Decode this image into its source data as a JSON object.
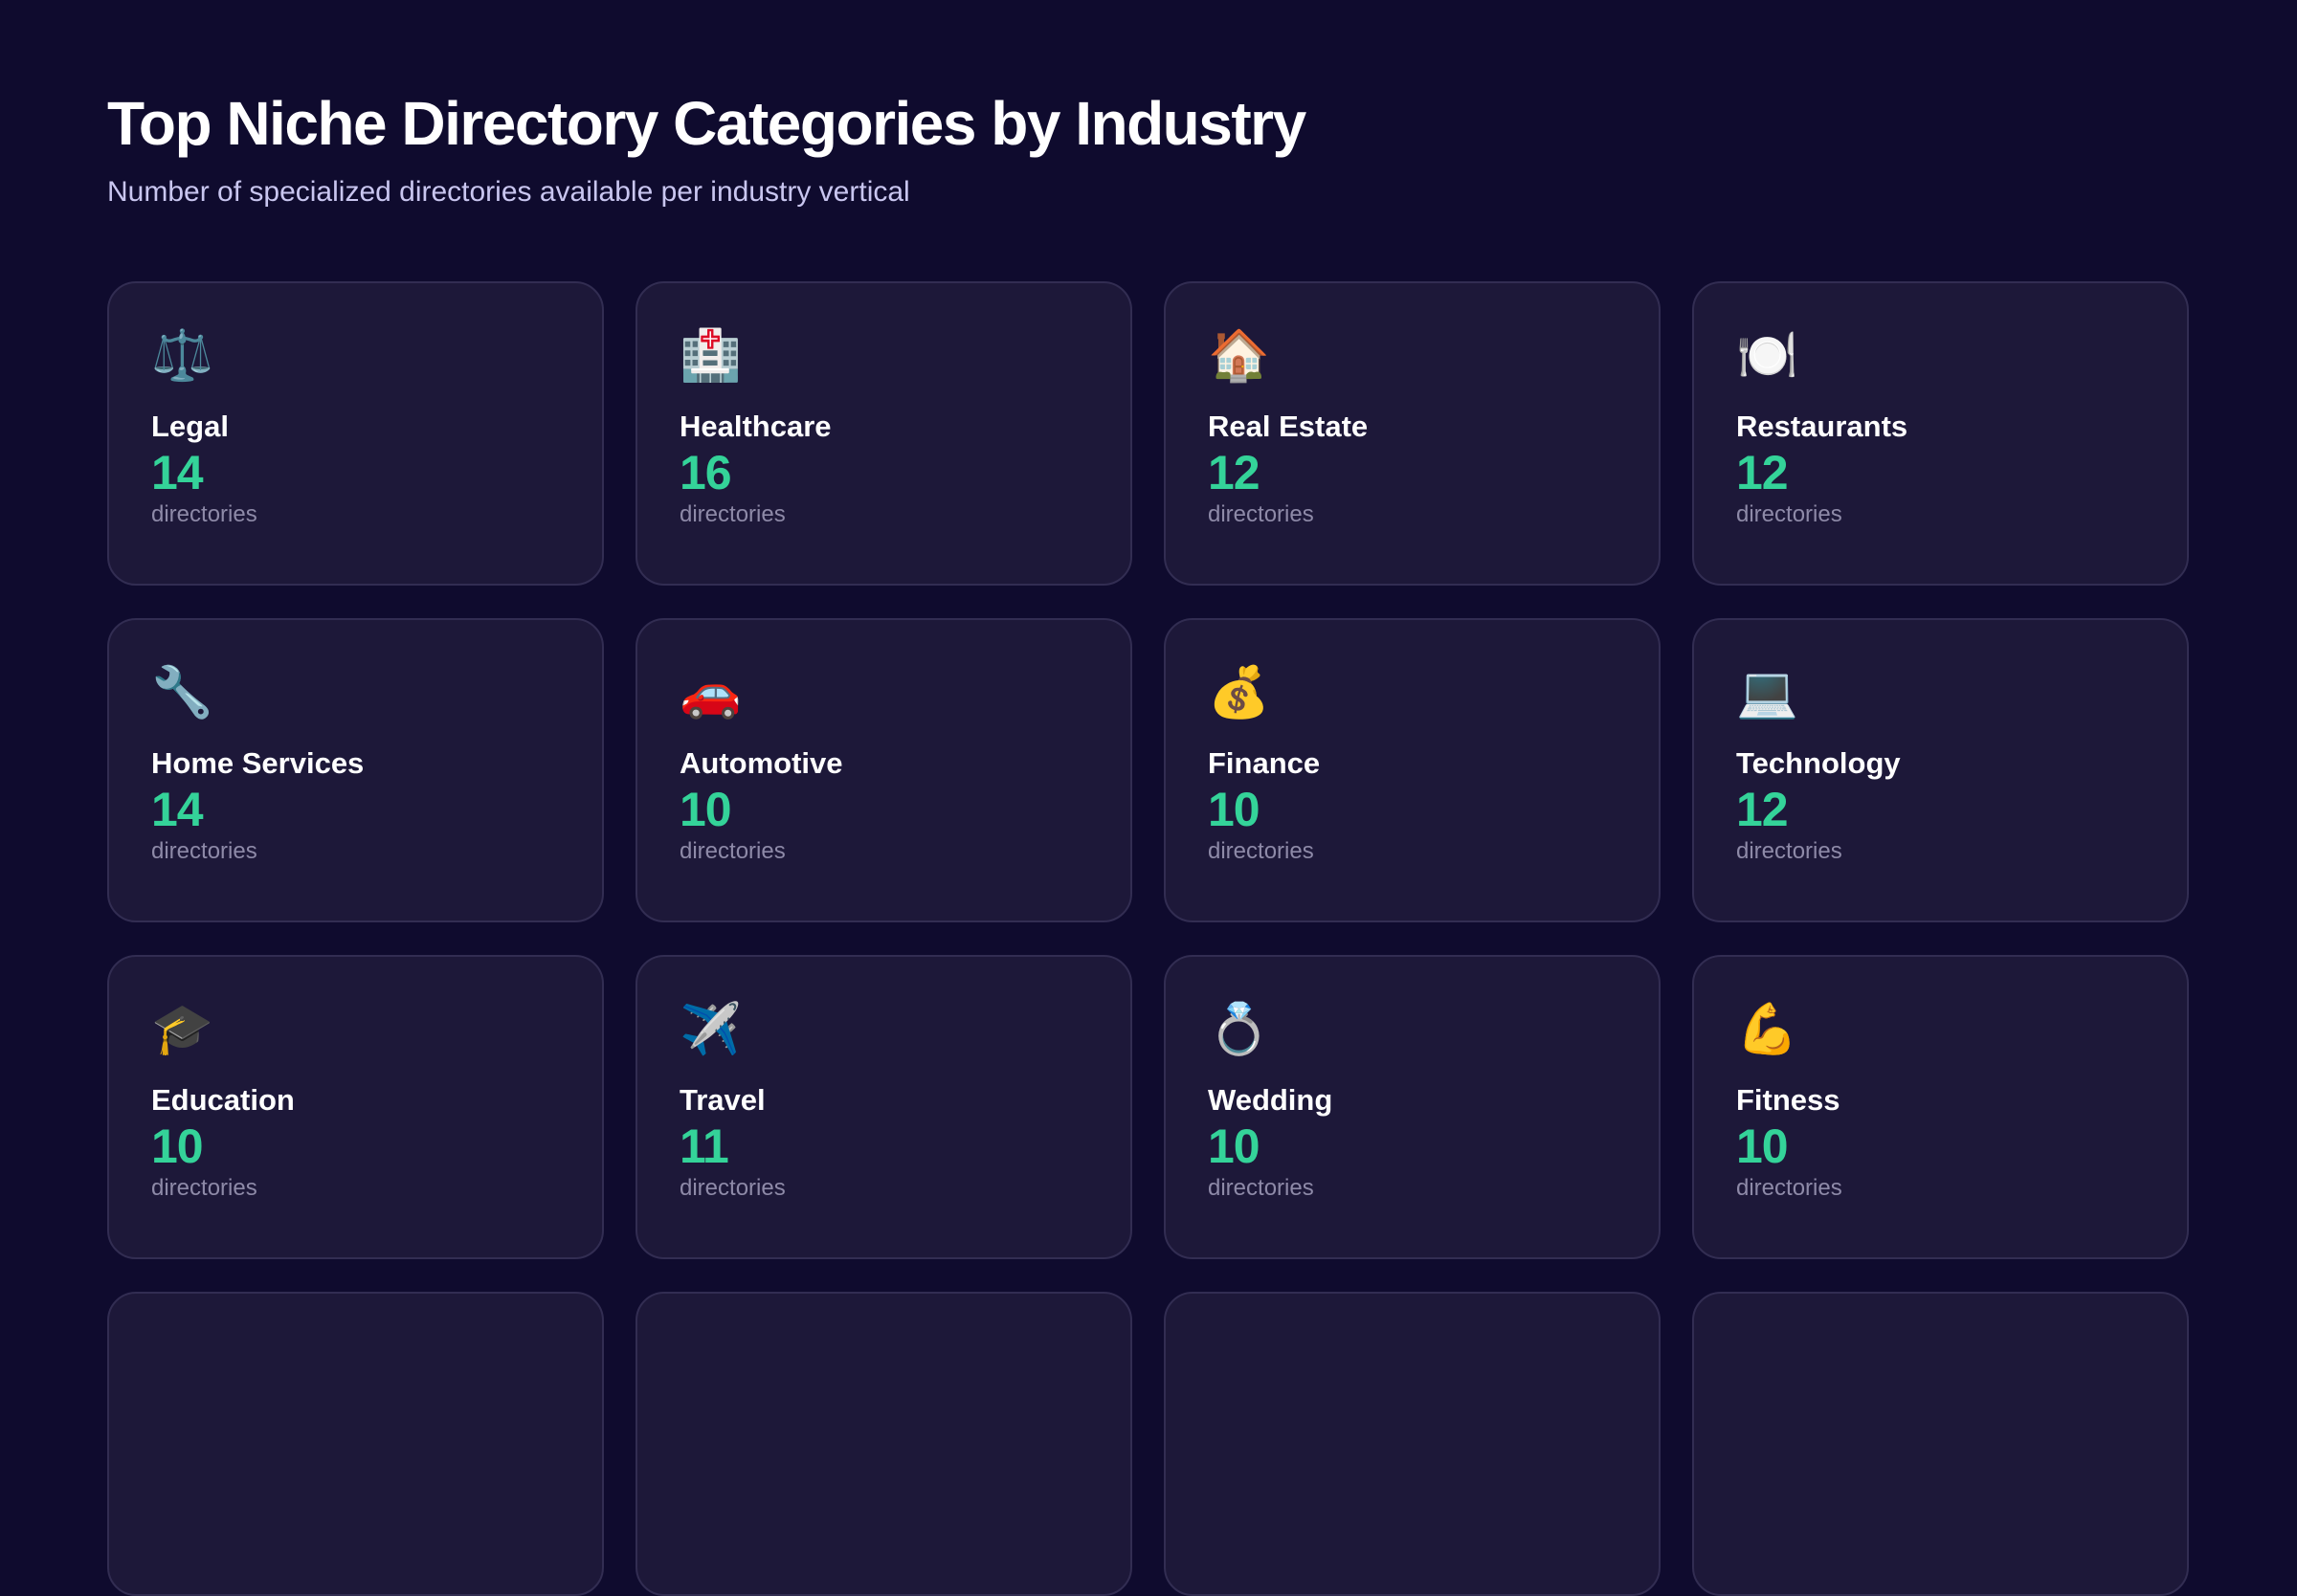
{
  "header": {
    "title": "Top Niche Directory Categories by Industry",
    "subtitle": "Number of specialized directories available per industry vertical"
  },
  "accent_color": "#34d399",
  "unit_label": "directories",
  "categories": [
    {
      "icon": "⚖️",
      "icon_name": "scales-icon",
      "name": "Legal",
      "count": "14"
    },
    {
      "icon": "🏥",
      "icon_name": "hospital-icon",
      "name": "Healthcare",
      "count": "16"
    },
    {
      "icon": "🏠",
      "icon_name": "house-icon",
      "name": "Real Estate",
      "count": "12"
    },
    {
      "icon": "🍽️",
      "icon_name": "plate-cutlery-icon",
      "name": "Restaurants",
      "count": "12"
    },
    {
      "icon": "🔧",
      "icon_name": "wrench-icon",
      "name": "Home Services",
      "count": "14"
    },
    {
      "icon": "🚗",
      "icon_name": "car-icon",
      "name": "Automotive",
      "count": "10"
    },
    {
      "icon": "💰",
      "icon_name": "money-bag-icon",
      "name": "Finance",
      "count": "10"
    },
    {
      "icon": "💻",
      "icon_name": "laptop-icon",
      "name": "Technology",
      "count": "12"
    },
    {
      "icon": "🎓",
      "icon_name": "graduation-cap-icon",
      "name": "Education",
      "count": "10"
    },
    {
      "icon": "✈️",
      "icon_name": "airplane-icon",
      "name": "Travel",
      "count": "11"
    },
    {
      "icon": "💍",
      "icon_name": "ring-icon",
      "name": "Wedding",
      "count": "10"
    },
    {
      "icon": "💪",
      "icon_name": "flexed-biceps-icon",
      "name": "Fitness",
      "count": "10"
    }
  ]
}
